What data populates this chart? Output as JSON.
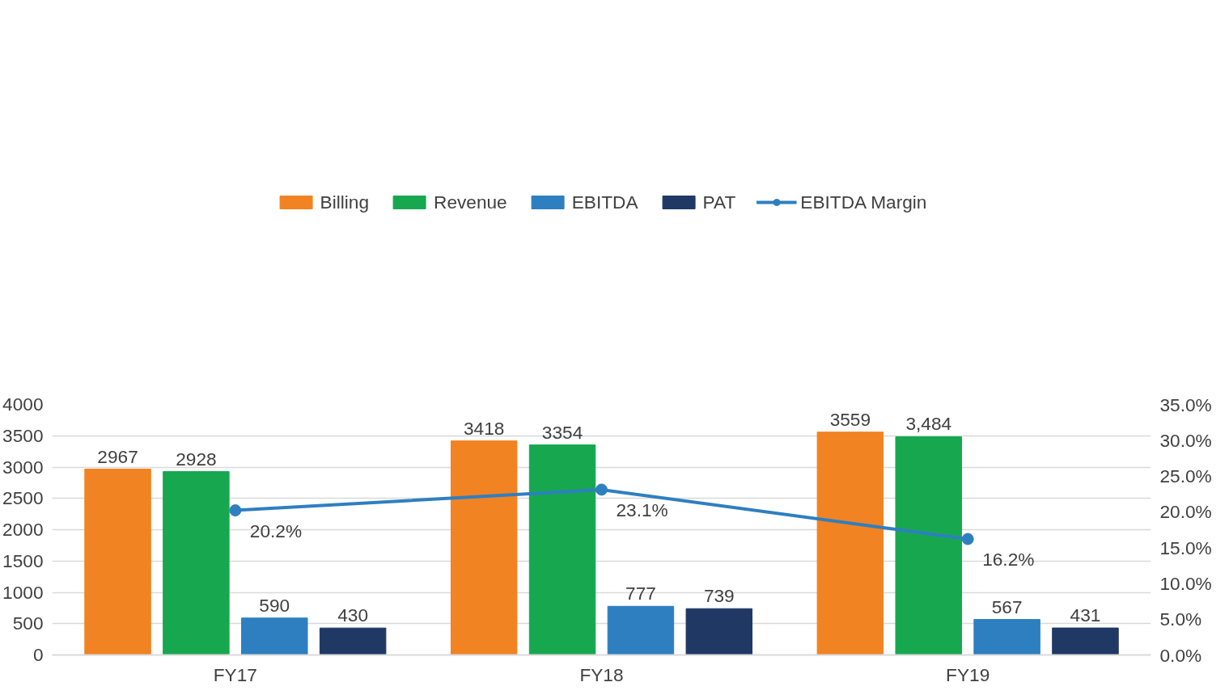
{
  "chart_data": {
    "type": "bar",
    "categories": [
      "FY17",
      "FY18",
      "FY19"
    ],
    "series": [
      {
        "name": "Billing",
        "color": "#f28322",
        "values": [
          2967,
          3418,
          3559
        ],
        "value_labels": [
          "2967",
          "3418",
          "3559"
        ]
      },
      {
        "name": "Revenue",
        "color": "#17a84f",
        "values": [
          2928,
          3354,
          3484
        ],
        "value_labels": [
          "2928",
          "3354",
          "3,484"
        ]
      },
      {
        "name": "EBITDA",
        "color": "#2e7fc0",
        "values": [
          590,
          777,
          567
        ],
        "value_labels": [
          "590",
          "777",
          "567"
        ]
      },
      {
        "name": "PAT",
        "color": "#1f3864",
        "values": [
          430,
          739,
          431
        ],
        "value_labels": [
          "430",
          "739",
          "431"
        ]
      },
      {
        "name": "EBITDA Margin",
        "type": "line",
        "axis": "y2",
        "color": "#2e7fc0",
        "marker": "circle",
        "values": [
          20.2,
          23.1,
          16.2
        ],
        "value_labels": [
          "20.2%",
          "23.1%",
          "16.2%"
        ]
      }
    ],
    "ylim": [
      0,
      4000
    ],
    "yticks": [
      0,
      500,
      1000,
      1500,
      2000,
      2500,
      3000,
      3500,
      4000
    ],
    "y2lim": [
      0,
      35
    ],
    "y2ticks": [
      {
        "value": 0,
        "label": "0.0%"
      },
      {
        "value": 5,
        "label": "5.0%"
      },
      {
        "value": 10,
        "label": "10.0%"
      },
      {
        "value": 15,
        "label": "15.0%"
      },
      {
        "value": 20,
        "label": "20.0%"
      },
      {
        "value": 25,
        "label": "25.0%"
      },
      {
        "value": 30,
        "label": "30.0%"
      },
      {
        "value": 35,
        "label": "35.0%"
      }
    ],
    "grid": "y",
    "legend": "top"
  }
}
